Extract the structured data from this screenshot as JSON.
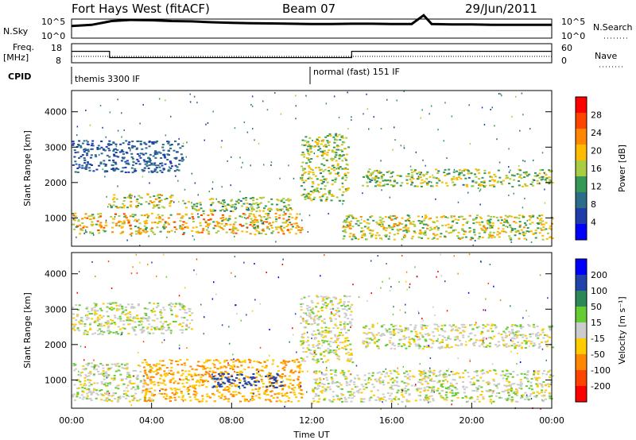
{
  "header": {
    "station": "Fort Hays West (fitACF)",
    "beam": "Beam 07",
    "date": "29/Jun/2011"
  },
  "labels": {
    "nsky": "N.Sky",
    "nsearch": "N.Search",
    "freq": "Freq.",
    "freq_unit": "[MHz]",
    "nave": "Nave",
    "cpid": "CPID",
    "cpid_1": "themis 3300 IF",
    "cpid_2": "normal (fast) 151 IF",
    "nsky_ticks": [
      "10^5",
      "10^0"
    ],
    "nsearch_ticks": [
      "10^5",
      "10^0"
    ],
    "freq_ticks": [
      "18",
      "8"
    ],
    "nave_ticks": [
      "60",
      "0"
    ]
  },
  "chart_data": [
    {
      "type": "line",
      "title": "",
      "ylabel": "N.Sky",
      "y2label": "N.Search",
      "series": [
        {
          "name": "N.Sky",
          "x": [
            0,
            1,
            2,
            3,
            4,
            5,
            6,
            7,
            8,
            9,
            10,
            11,
            12,
            13,
            14,
            15,
            16,
            17,
            17.6,
            18,
            19,
            20,
            21,
            22,
            23,
            24
          ],
          "values": [
            1500,
            3000,
            30000,
            60000,
            50000,
            30000,
            25000,
            15000,
            10000,
            8000,
            7000,
            6000,
            5000,
            5000,
            6000,
            6000,
            5000,
            5000,
            1000000,
            5000,
            4000,
            4000,
            3000,
            3000,
            3000,
            3000
          ]
        }
      ],
      "xlim": [
        0,
        24
      ],
      "ylim": [
        1,
        100000
      ],
      "log_y": true
    },
    {
      "type": "line",
      "ylabel": "Freq. [MHz]",
      "y2label": "Nave",
      "series": [
        {
          "name": "Freq.",
          "x": [
            0,
            1.9,
            1.9,
            14.0,
            14.0,
            24
          ],
          "values": [
            14,
            14,
            10.7,
            10.7,
            14,
            14
          ]
        },
        {
          "name": "Nave",
          "x": [
            0,
            24
          ],
          "values": [
            20,
            20
          ]
        }
      ],
      "xlim": [
        0,
        24
      ],
      "ylim": [
        8,
        18
      ],
      "y2lim": [
        0,
        60
      ]
    },
    {
      "type": "heatmap",
      "xlabel": "",
      "ylabel": "Slant Range [km]",
      "colorbar_label": "Power [dB]",
      "colorbar_ticks": [
        "28",
        "24",
        "20",
        "16",
        "12",
        "8",
        "4"
      ],
      "colorbar_colors": [
        "#ff0000",
        "#ff4400",
        "#ff8800",
        "#ffbb00",
        "#aacc44",
        "#339955",
        "#2c6e88",
        "#1e3caa",
        "#0000ff"
      ],
      "xlim": [
        0,
        24
      ],
      "ylim": [
        200,
        4600
      ],
      "yticks": [
        1000,
        2000,
        3000,
        4000
      ],
      "echo_bands": [
        {
          "t0": 0,
          "t1": 11.5,
          "r0": 550,
          "r1": 1150,
          "peak": 26
        },
        {
          "t0": 0,
          "t1": 5.5,
          "r0": 2300,
          "r1": 3200,
          "peak": 8
        },
        {
          "t0": 1.8,
          "t1": 5.0,
          "r0": 1300,
          "r1": 1700,
          "peak": 22
        },
        {
          "t0": 5.5,
          "t1": 11.0,
          "r0": 1200,
          "r1": 1600,
          "peak": 20
        },
        {
          "t0": 11.4,
          "t1": 13.8,
          "r0": 1500,
          "r1": 3400,
          "peak": 20
        },
        {
          "t0": 13.5,
          "t1": 24,
          "r0": 400,
          "r1": 1100,
          "peak": 22
        },
        {
          "t0": 14.5,
          "t1": 24,
          "r0": 1900,
          "r1": 2400,
          "peak": 20
        }
      ]
    },
    {
      "type": "heatmap",
      "xlabel": "Time UT",
      "ylabel": "Slant Range [km]",
      "colorbar_label": "Velocity [m s⁻¹]",
      "colorbar_ticks": [
        "200",
        "100",
        "50",
        "15",
        "-15",
        "-50",
        "-100",
        "-200"
      ],
      "colorbar_colors": [
        "#0000ff",
        "#2244aa",
        "#2c8855",
        "#66cc33",
        "#cccccc",
        "#ffcc00",
        "#ff8800",
        "#ff4400",
        "#ff0000"
      ],
      "xlim": [
        0,
        24
      ],
      "ylim": [
        200,
        4600
      ],
      "yticks": [
        1000,
        2000,
        3000,
        4000
      ],
      "xticks": [
        "00:00",
        "04:00",
        "08:00",
        "12:00",
        "16:00",
        "20:00",
        "00:00"
      ],
      "echo_bands": [
        {
          "t0": 0,
          "t1": 4.0,
          "r0": 400,
          "r1": 1500,
          "v": 0
        },
        {
          "t0": 3.5,
          "t1": 11.5,
          "r0": 400,
          "r1": 1600,
          "v": -50
        },
        {
          "t0": 7.0,
          "t1": 10.5,
          "r0": 800,
          "r1": 1200,
          "v": 150
        },
        {
          "t0": 0,
          "t1": 6.0,
          "r0": 2300,
          "r1": 3200,
          "v": 0
        },
        {
          "t0": 11.4,
          "t1": 14.0,
          "r0": 1500,
          "r1": 3400,
          "v": 0
        },
        {
          "t0": 12.0,
          "t1": 24,
          "r0": 400,
          "r1": 1300,
          "v": 0
        },
        {
          "t0": 14.5,
          "t1": 24,
          "r0": 1900,
          "r1": 2600,
          "v": 0
        }
      ]
    }
  ]
}
